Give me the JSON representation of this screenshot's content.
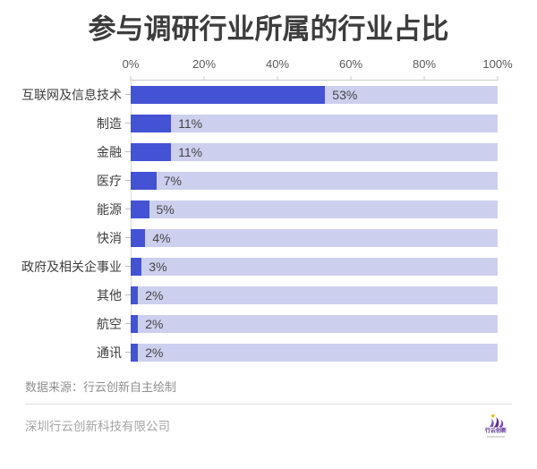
{
  "title": "参与调研行业所属的行业占比",
  "chart_data": {
    "type": "bar",
    "orientation": "horizontal",
    "title": "参与调研行业所属的行业占比",
    "categories": [
      "互联网及信息技术",
      "制造",
      "金融",
      "医疗",
      "能源",
      "快消",
      "政府及相关企事业",
      "其他",
      "航空",
      "通讯"
    ],
    "values": [
      53,
      11,
      11,
      7,
      5,
      4,
      3,
      2,
      2,
      2
    ],
    "value_labels": [
      "53%",
      "11%",
      "11%",
      "7%",
      "5%",
      "4%",
      "3%",
      "2%",
      "2%",
      "2%"
    ],
    "x_tick_labels": [
      "0%",
      "20%",
      "40%",
      "60%",
      "80%",
      "100%"
    ],
    "x_tick_values": [
      0,
      20,
      40,
      60,
      80,
      100
    ],
    "xlim": [
      0,
      100
    ],
    "grid": false,
    "legend": false,
    "bar_color": "#4452d4",
    "track_color": "#cdcfee"
  },
  "footer": {
    "source": "数据来源：行云创新自主绘制",
    "company": "深圳行云创新科技有限公司",
    "logo_text": "行云创新"
  },
  "colors": {
    "bar": "#4452d4",
    "track": "#cdcfee",
    "title_text": "#3d3d3d",
    "axis_text": "#595959",
    "muted_text": "#8f8f8f",
    "logo_purple": "#5b2d8e",
    "logo_yellow": "#f2b632"
  }
}
